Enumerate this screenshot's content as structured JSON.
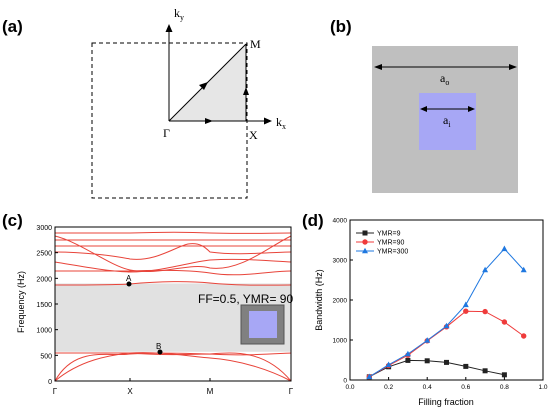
{
  "panel_a": {
    "label": "(a)",
    "ky": "k",
    "ky_sub": "y",
    "kx": "k",
    "kx_sub": "x",
    "gamma": "Γ",
    "x": "X",
    "m": "M"
  },
  "panel_b": {
    "label": "(b)",
    "ao": "a",
    "ao_sub": "o",
    "ai": "a",
    "ai_sub": "i",
    "colors": {
      "outer": "#bfbfbf",
      "inner": "#a7a7f5"
    }
  },
  "panel_c": {
    "label": "(c)",
    "ylabel": "Frequency (Hz)",
    "yticks": [
      "0",
      "500",
      "1000",
      "1500",
      "2000",
      "2500",
      "3000"
    ],
    "xticks": [
      "Γ",
      "X",
      "M",
      "Γ"
    ],
    "annotation": "FF=0.5, YMR= 90",
    "point_a": "A",
    "point_b": "B",
    "gap": {
      "from_hz": 570,
      "to_hz": 1900
    },
    "colors": {
      "bands": "#e8443a",
      "gap": "#e1e1e1"
    }
  },
  "panel_d": {
    "label": "(d)",
    "ylabel": "Bandwidth (Hz)",
    "xlabel": "Filling fraction",
    "xticks": [
      "0.0",
      "0.2",
      "0.4",
      "0.6",
      "0.8",
      "1.0"
    ],
    "yticks": [
      "0",
      "1000",
      "2000",
      "3000",
      "4000"
    ]
  },
  "chart_data": {
    "type": "line",
    "xlabel": "Filling fraction",
    "ylabel": "Bandwidth (Hz)",
    "xlim": [
      0.0,
      1.0
    ],
    "ylim": [
      0,
      4000
    ],
    "legend": "top-left",
    "grid": false,
    "series": [
      {
        "name": "YMR=9",
        "marker": "square",
        "color": "#222222",
        "x": [
          0.1,
          0.2,
          0.3,
          0.4,
          0.5,
          0.6,
          0.7,
          0.8
        ],
        "values": [
          80,
          330,
          490,
          480,
          440,
          340,
          230,
          130
        ]
      },
      {
        "name": "YMR=90",
        "marker": "circle",
        "color": "#ef3b3b",
        "x": [
          0.1,
          0.2,
          0.3,
          0.4,
          0.5,
          0.6,
          0.7,
          0.8,
          0.9
        ],
        "values": [
          80,
          360,
          620,
          980,
          1330,
          1720,
          1710,
          1450,
          1100
        ]
      },
      {
        "name": "YMR=300",
        "marker": "triangle",
        "color": "#1f78e0",
        "x": [
          0.1,
          0.2,
          0.3,
          0.4,
          0.5,
          0.6,
          0.7,
          0.8,
          0.9
        ],
        "values": [
          80,
          380,
          650,
          990,
          1350,
          1880,
          2750,
          3280,
          2750
        ]
      }
    ]
  }
}
